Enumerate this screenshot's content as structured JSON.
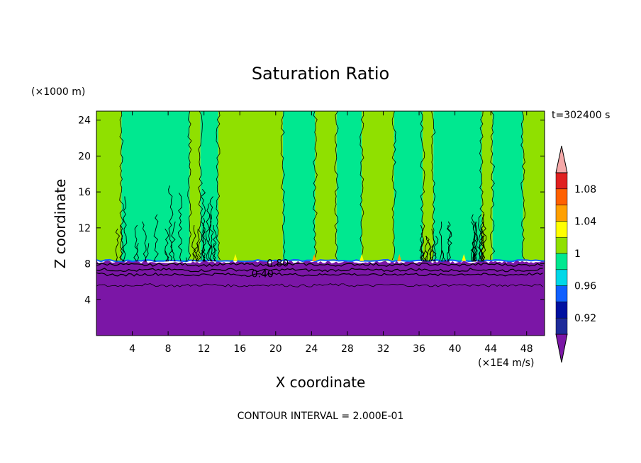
{
  "chart_data": {
    "type": "heatmap",
    "title": "Saturation Ratio",
    "xlabel": "X coordinate",
    "ylabel": "Z coordinate",
    "x_unit": "(×1E4 m/s)",
    "y_unit": "(×1000 m)",
    "time_label": "t=302400 s",
    "footer": "CONTOUR INTERVAL = 2.000E-01",
    "xlim": [
      0,
      50
    ],
    "ylim": [
      0,
      25
    ],
    "x_ticks": [
      "4",
      "8",
      "12",
      "16",
      "20",
      "24",
      "28",
      "32",
      "36",
      "40",
      "44",
      "48"
    ],
    "x_tick_values": [
      4,
      8,
      12,
      16,
      20,
      24,
      28,
      32,
      36,
      40,
      44,
      48
    ],
    "y_ticks": [
      "4",
      "8",
      "12",
      "16",
      "20",
      "24"
    ],
    "y_tick_values": [
      4,
      8,
      12,
      16,
      20,
      24
    ],
    "contour_labels": [
      {
        "text": "0.80",
        "x": 19.0,
        "z": 8.1
      },
      {
        "text": "0.40",
        "x": 17.3,
        "z": 6.9
      }
    ],
    "colorbar": {
      "labels": [
        "1.08",
        "1.04",
        "1",
        "0.96",
        "0.92"
      ],
      "label_levels": [
        1.08,
        1.04,
        1.0,
        0.96,
        0.92
      ],
      "levels": [
        0.9,
        0.92,
        0.94,
        0.96,
        0.98,
        1.0,
        1.02,
        1.04,
        1.06,
        1.08,
        1.1
      ],
      "colors": [
        "#1e2b9a",
        "#0010a0",
        "#1060ff",
        "#00d8e8",
        "#00e890",
        "#90e000",
        "#ffff00",
        "#ffa000",
        "#ff6000",
        "#e02020"
      ],
      "under_color": "#7b16a6",
      "over_color": "#f5a8a8"
    },
    "regions": [
      {
        "name": "lower saturation layer (< 0.90)",
        "z": [
          0,
          8.3
        ],
        "color": "#7b16a6"
      },
      {
        "name": "upper layer (0.98–1.02)",
        "z": [
          8.3,
          25
        ],
        "colors": [
          "#00e890",
          "#90e000"
        ]
      }
    ],
    "column_bands": [
      {
        "x": [
          0,
          2.8
        ],
        "color": "#90e000"
      },
      {
        "x": [
          2.8,
          10.4
        ],
        "color": "#00e890"
      },
      {
        "x": [
          10.4,
          11.6
        ],
        "color": "#90e000"
      },
      {
        "x": [
          11.6,
          13.6
        ],
        "color": "#00e890"
      },
      {
        "x": [
          13.6,
          20.8
        ],
        "color": "#90e000"
      },
      {
        "x": [
          20.8,
          24.4
        ],
        "color": "#00e890"
      },
      {
        "x": [
          24.4,
          26.8
        ],
        "color": "#90e000"
      },
      {
        "x": [
          26.8,
          29.6
        ],
        "color": "#00e890"
      },
      {
        "x": [
          29.6,
          33.2
        ],
        "color": "#90e000"
      },
      {
        "x": [
          33.2,
          36.4
        ],
        "color": "#00e890"
      },
      {
        "x": [
          36.4,
          37.6
        ],
        "color": "#90e000"
      },
      {
        "x": [
          37.6,
          43.0
        ],
        "color": "#00e890"
      },
      {
        "x": [
          43.0,
          44.2
        ],
        "color": "#90e000"
      },
      {
        "x": [
          44.2,
          47.6
        ],
        "color": "#00e890"
      },
      {
        "x": [
          47.6,
          50
        ],
        "color": "#90e000"
      }
    ]
  }
}
